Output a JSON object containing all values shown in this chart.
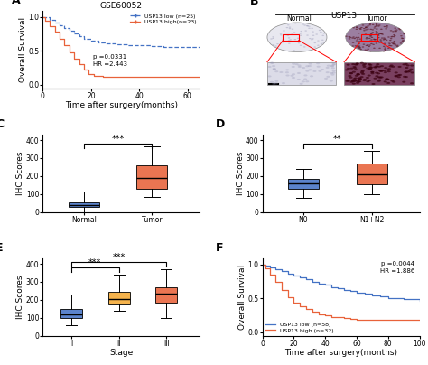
{
  "panel_A": {
    "title": "GSE60052",
    "xlabel": "Time after surgery(months)",
    "ylabel": "Overall Survival",
    "legend": [
      "USP13 low (n=25)",
      "USP13 high(n=23)"
    ],
    "colors": [
      "#4472C4",
      "#E8623A"
    ],
    "annotation": "p =0.0331\nHR =2.443",
    "xlim": [
      0,
      65
    ],
    "ylim": [
      -0.05,
      1.09
    ],
    "xticks": [
      0,
      20,
      40,
      60
    ],
    "yticks": [
      0.0,
      0.5,
      1.0
    ],
    "low_x": [
      0,
      1,
      3,
      5,
      7,
      9,
      11,
      13,
      15,
      17,
      20,
      23,
      26,
      30,
      35,
      40,
      45,
      50,
      55,
      60,
      65
    ],
    "low_y": [
      1.0,
      1.0,
      0.96,
      0.92,
      0.88,
      0.84,
      0.8,
      0.76,
      0.72,
      0.68,
      0.65,
      0.63,
      0.61,
      0.6,
      0.59,
      0.58,
      0.57,
      0.56,
      0.56,
      0.56,
      0.56
    ],
    "high_x": [
      0,
      1,
      3,
      5,
      7,
      9,
      11,
      13,
      15,
      17,
      19,
      21,
      23,
      25,
      27,
      30,
      65
    ],
    "high_y": [
      1.0,
      0.95,
      0.87,
      0.78,
      0.68,
      0.58,
      0.48,
      0.38,
      0.3,
      0.22,
      0.16,
      0.13,
      0.13,
      0.12,
      0.12,
      0.12,
      0.12
    ]
  },
  "panel_C": {
    "ylabel": "IHC Scores",
    "categories": [
      "Normal",
      "Tumor"
    ],
    "colors": [
      "#4472C4",
      "#E8623A"
    ],
    "significance": "***",
    "ylim": [
      0,
      430
    ],
    "yticks": [
      0,
      100,
      200,
      300,
      400
    ],
    "boxes": [
      {
        "med": 40,
        "q1": 30,
        "q3": 52,
        "whislo": 0,
        "whishi": 115
      },
      {
        "med": 188,
        "q1": 130,
        "q3": 258,
        "whislo": 85,
        "whishi": 365
      }
    ]
  },
  "panel_D": {
    "ylabel": "IHC Scores",
    "categories": [
      "N0",
      "N1+N2"
    ],
    "colors": [
      "#4472C4",
      "#E8623A"
    ],
    "significance": "**",
    "ylim": [
      0,
      430
    ],
    "yticks": [
      0,
      100,
      200,
      300,
      400
    ],
    "boxes": [
      {
        "med": 158,
        "q1": 128,
        "q3": 182,
        "whislo": 78,
        "whishi": 238
      },
      {
        "med": 208,
        "q1": 152,
        "q3": 268,
        "whislo": 98,
        "whishi": 342
      }
    ]
  },
  "panel_E": {
    "xlabel": "Stage",
    "ylabel": "IHC Scores",
    "categories": [
      "I",
      "II",
      "III"
    ],
    "colors": [
      "#4472C4",
      "#F4A933",
      "#E8623A"
    ],
    "significance1": "***",
    "significance2": "***",
    "ylim": [
      0,
      430
    ],
    "yticks": [
      0,
      100,
      200,
      300,
      400
    ],
    "boxes": [
      {
        "med": 120,
        "q1": 98,
        "q3": 148,
        "whislo": 58,
        "whishi": 228
      },
      {
        "med": 205,
        "q1": 172,
        "q3": 242,
        "whislo": 138,
        "whishi": 342
      },
      {
        "med": 232,
        "q1": 182,
        "q3": 272,
        "whislo": 98,
        "whishi": 372
      }
    ]
  },
  "panel_F": {
    "xlabel": "Time after surgery(months)",
    "ylabel": "Overall Survival",
    "legend": [
      "USP13 low (n=58)",
      "USP13 high (n=32)"
    ],
    "colors": [
      "#4472C4",
      "#E8623A"
    ],
    "annotation": "p =0.0044\nHR =1.886",
    "xlim": [
      0,
      100
    ],
    "ylim": [
      -0.05,
      1.09
    ],
    "xticks": [
      0,
      20,
      40,
      60,
      80,
      100
    ],
    "yticks": [
      0.0,
      0.5,
      1.0
    ],
    "low_x": [
      0,
      2,
      5,
      8,
      12,
      16,
      20,
      24,
      28,
      32,
      36,
      40,
      44,
      48,
      52,
      56,
      60,
      65,
      70,
      75,
      80,
      90,
      100
    ],
    "low_y": [
      1.0,
      0.98,
      0.96,
      0.93,
      0.9,
      0.87,
      0.84,
      0.81,
      0.78,
      0.75,
      0.72,
      0.7,
      0.67,
      0.65,
      0.63,
      0.61,
      0.59,
      0.57,
      0.55,
      0.53,
      0.51,
      0.49,
      0.47
    ],
    "high_x": [
      0,
      2,
      5,
      8,
      12,
      16,
      20,
      24,
      28,
      32,
      36,
      40,
      44,
      48,
      52,
      56,
      60,
      65,
      70,
      80,
      100
    ],
    "high_y": [
      1.0,
      0.94,
      0.85,
      0.74,
      0.62,
      0.52,
      0.44,
      0.38,
      0.34,
      0.3,
      0.27,
      0.25,
      0.23,
      0.22,
      0.21,
      0.2,
      0.19,
      0.19,
      0.18,
      0.18,
      0.18
    ]
  },
  "label_fontsize": 6.5,
  "tick_fontsize": 5.5,
  "panel_label_fontsize": 9
}
